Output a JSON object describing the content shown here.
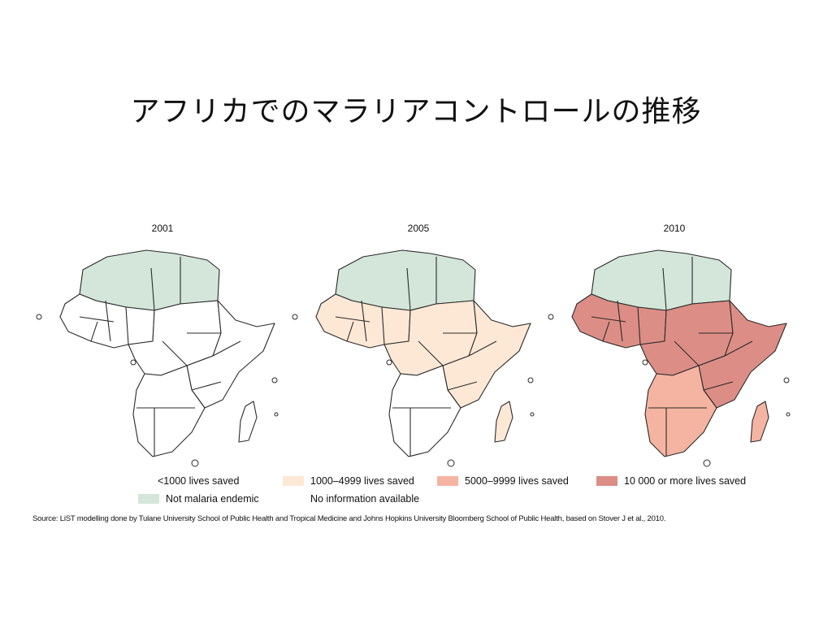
{
  "slide": {
    "title": "アフリカでのマラリアコントロールの推移"
  },
  "maps": [
    {
      "year": "2001",
      "zones": {
        "north": "not_endemic",
        "west": "lt1000",
        "central": "lt1000",
        "east": "lt1000",
        "south": "lt1000",
        "madagascar": "lt1000"
      }
    },
    {
      "year": "2005",
      "zones": {
        "north": "not_endemic",
        "west": "r1000_4999",
        "central": "r1000_4999",
        "east": "r1000_4999",
        "south": "lt1000",
        "madagascar": "r1000_4999"
      }
    },
    {
      "year": "2010",
      "zones": {
        "north": "not_endemic",
        "west": "ge10000",
        "central": "ge10000",
        "east": "ge10000",
        "south": "r5000_9999",
        "madagascar": "r5000_9999"
      }
    }
  ],
  "legend": {
    "lt1000": {
      "label": "<1000 lives saved",
      "color": "#ffffff"
    },
    "r1000_4999": {
      "label": "1000–4999 lives saved",
      "color": "#fde8d6"
    },
    "r5000_9999": {
      "label": "5000–9999 lives saved",
      "color": "#f5b4a2"
    },
    "ge10000": {
      "label": "10 000 or more lives saved",
      "color": "#dc8e86"
    },
    "not_endemic": {
      "label": "Not malaria endemic",
      "color": "#d3e6d9"
    },
    "no_info": {
      "label": "No information available",
      "color": "#ffffff"
    }
  },
  "source": "Source: LiST modelling done by Tulane University School of Public Health and Tropical Medicine and Johns Hopkins University Bloomberg School of Public Health, based on Stover J et al., 2010."
}
